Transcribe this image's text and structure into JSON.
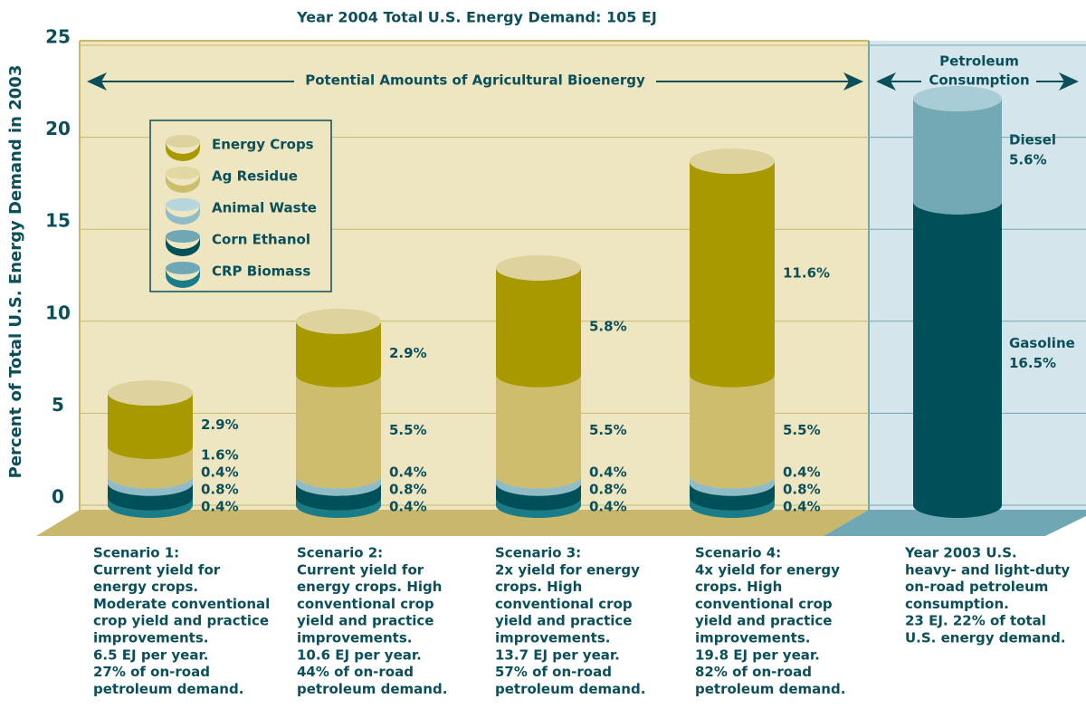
{
  "chart_data": [
    {
      "type": "bar",
      "stacked": true,
      "title": "Year 2004 Total U.S. Energy Demand: 105  EJ",
      "ylabel": "Percent of Total U.S. Energy Demand in 2003",
      "annotation": "Potential Amounts of Agricultural Bioenergy",
      "categories": [
        "Scenario 1:",
        "Scenario 2:",
        "Scenario 3:",
        "Scenario 4:"
      ],
      "descriptions": [
        [
          "Current yield for",
          "energy crops.",
          "Moderate conventional",
          "crop yield and practice",
          "improvements.",
          "6.5 EJ per year.",
          "27% of on-road",
          "petroleum demand."
        ],
        [
          "Current yield for",
          "energy crops. High",
          "conventional crop",
          "yield and practice",
          "improvements.",
          "10.6 EJ per year.",
          "44% of on-road",
          "petroleum demand."
        ],
        [
          "2x yield for energy",
          "crops. High",
          "conventional crop",
          "yield and practice",
          "improvements.",
          "13.7 EJ per year.",
          "57% of on-road",
          "petroleum demand."
        ],
        [
          "4x yield for energy",
          "crops. High",
          "conventional crop",
          "yield and practice",
          "improvements.",
          "19.8 EJ per year.",
          "82% of on-road",
          "petroleum demand."
        ]
      ],
      "series": [
        {
          "name": "CRP Biomass",
          "color": "#1a7c88",
          "top_color": "#6fa8b4",
          "values": [
            0.4,
            0.4,
            0.4,
            0.4
          ],
          "value_labels": [
            "0.4%",
            "0.4%",
            "0.4%",
            "0.4%"
          ]
        },
        {
          "name": "Corn Ethanol",
          "color": "#00505a",
          "top_color": "#6fa8b4",
          "values": [
            0.8,
            0.8,
            0.8,
            0.8
          ],
          "value_labels": [
            "0.8%",
            "0.8%",
            "0.8%",
            "0.8%"
          ]
        },
        {
          "name": "Animal Waste",
          "color": "#8fbcc7",
          "top_color": "#b7d5dd",
          "values": [
            0.4,
            0.4,
            0.4,
            0.4
          ],
          "value_labels": [
            "0.4%",
            "0.4%",
            "0.4%",
            "0.4%"
          ]
        },
        {
          "name": "Ag Residue",
          "color": "#cdbd6c",
          "top_color": "#e2d8a2",
          "values": [
            1.6,
            5.5,
            5.5,
            5.5
          ],
          "value_labels": [
            "1.6%",
            "5.5%",
            "5.5%",
            "5.5%"
          ]
        },
        {
          "name": "Energy Crops",
          "color": "#a89900",
          "top_color": "#ded39e",
          "values": [
            2.9,
            2.9,
            5.8,
            11.6
          ],
          "value_labels": [
            "2.9%",
            "2.9%",
            "5.8%",
            "11.6%"
          ]
        }
      ],
      "ylim": [
        0,
        25
      ],
      "yticks": [
        0,
        5,
        10,
        15,
        20,
        25
      ],
      "grid": true,
      "legend": "upper left"
    },
    {
      "type": "bar",
      "stacked": true,
      "annotation": [
        "Petroleum",
        "Consumption"
      ],
      "categories": [
        "Year 2003 U.S."
      ],
      "descriptions": [
        [
          "heavy- and light-duty",
          "on-road petroleum",
          "consumption.",
          "23 EJ. 22% of total",
          "U.S. energy demand."
        ]
      ],
      "series": [
        {
          "name": "Gasoline",
          "color": "#00505a",
          "top_color": "#6fa8b4",
          "values": [
            16.5
          ],
          "value_labels": [
            "16.5%"
          ]
        },
        {
          "name": "Diesel",
          "color": "#72a9b5",
          "top_color": "#a9cdd6",
          "values": [
            5.6
          ],
          "value_labels": [
            "5.6%"
          ]
        }
      ],
      "ylim": [
        0,
        25
      ]
    }
  ]
}
